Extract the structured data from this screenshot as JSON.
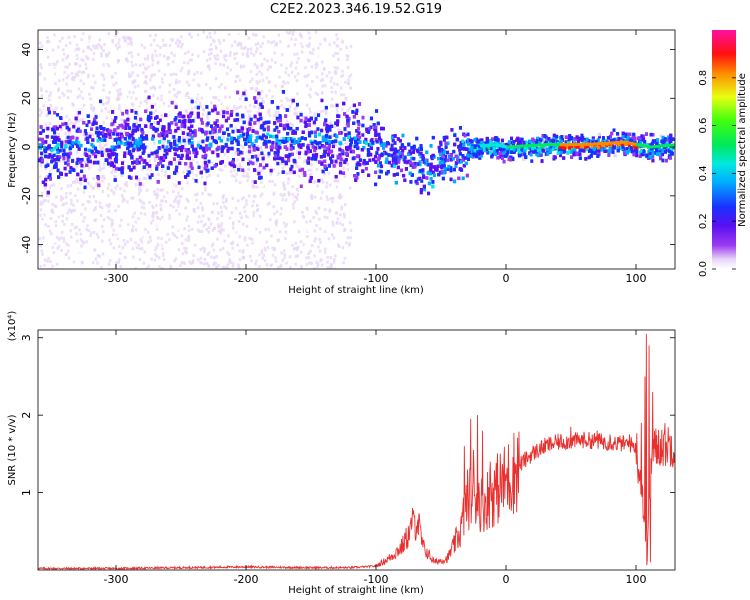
{
  "title": "C2E2.2023.346.19.52.G19",
  "chart_data": [
    {
      "type": "heatmap",
      "xlabel": "Height of straight line (km)",
      "ylabel": "Frequency (Hz)",
      "xlim": [
        -360,
        130
      ],
      "ylim": [
        -50,
        48
      ],
      "x_ticks": [
        -300,
        -200,
        -100,
        0,
        100
      ],
      "x_tick_labels": [
        "-300",
        "-200",
        "-100",
        "0",
        "100"
      ],
      "y_ticks": [
        -40,
        -20,
        0,
        20,
        40
      ],
      "y_tick_labels": [
        "-40",
        "-20",
        "0",
        "20",
        "40"
      ],
      "colorbar": {
        "label": "Normalized spectral amplitude",
        "range": [
          0,
          1
        ],
        "ticks": [
          0.0,
          0.2,
          0.4,
          0.6,
          0.8
        ],
        "tick_labels": [
          "0.0",
          "0.2",
          "0.4",
          "0.6",
          "0.8"
        ],
        "colormap": "rainbow (white-violet-blue-cyan-green-yellow-red-magenta)"
      },
      "center_frequency": [
        [
          -360,
          0
        ],
        [
          -300,
          2
        ],
        [
          -250,
          3
        ],
        [
          -200,
          4
        ],
        [
          -150,
          4
        ],
        [
          -120,
          3
        ],
        [
          -100,
          0
        ],
        [
          -80,
          -4
        ],
        [
          -60,
          -8
        ],
        [
          -50,
          -4
        ],
        [
          -40,
          -2
        ],
        [
          -30,
          0
        ],
        [
          -10,
          1
        ],
        [
          0,
          0
        ],
        [
          30,
          1
        ],
        [
          60,
          1
        ],
        [
          90,
          2
        ],
        [
          110,
          0
        ],
        [
          130,
          1
        ]
      ],
      "grid": false
    },
    {
      "type": "line",
      "xlabel": "Height of straight line (km)",
      "ylabel": "SNR (10 * v/v)",
      "y_multiplier_label": "(x10⁴)",
      "xlim": [
        -360,
        130
      ],
      "ylim": [
        0,
        3.1
      ],
      "x_ticks": [
        -300,
        -200,
        -100,
        0,
        100
      ],
      "x_tick_labels": [
        "-300",
        "-200",
        "-100",
        "0",
        "100"
      ],
      "y_ticks": [
        1,
        2,
        3
      ],
      "y_tick_labels": [
        "1",
        "2",
        "3"
      ],
      "series_color": "#e8302f",
      "envelope": [
        [
          -360,
          0.02
        ],
        [
          -300,
          0.02
        ],
        [
          -250,
          0.03
        ],
        [
          -200,
          0.04
        ],
        [
          -150,
          0.03
        ],
        [
          -120,
          0.03
        ],
        [
          -100,
          0.05
        ],
        [
          -90,
          0.15
        ],
        [
          -80,
          0.3
        ],
        [
          -72,
          0.55
        ],
        [
          -68,
          0.65
        ],
        [
          -64,
          0.3
        ],
        [
          -55,
          0.1
        ],
        [
          -45,
          0.15
        ],
        [
          -35,
          0.5
        ],
        [
          -30,
          0.9
        ],
        [
          -25,
          1.0
        ],
        [
          -18,
          0.85
        ],
        [
          -10,
          1.0
        ],
        [
          0,
          1.15
        ],
        [
          10,
          1.35
        ],
        [
          20,
          1.5
        ],
        [
          30,
          1.6
        ],
        [
          40,
          1.65
        ],
        [
          60,
          1.68
        ],
        [
          80,
          1.65
        ],
        [
          95,
          1.62
        ],
        [
          100,
          1.6
        ],
        [
          105,
          1.0
        ],
        [
          108,
          0.2
        ],
        [
          112,
          1.5
        ],
        [
          118,
          1.62
        ],
        [
          130,
          1.62
        ]
      ],
      "spikes": [
        [
          -72,
          0.8
        ],
        [
          -32,
          1.6
        ],
        [
          -27,
          1.95
        ],
        [
          -25,
          1.55
        ],
        [
          -22,
          2.0
        ],
        [
          -18,
          1.8
        ],
        [
          -12,
          1.4
        ],
        [
          50,
          1.85
        ],
        [
          70,
          1.8
        ],
        [
          80,
          1.75
        ],
        [
          95,
          1.75
        ],
        [
          104,
          1.9
        ],
        [
          107,
          2.5
        ],
        [
          108,
          3.05
        ],
        [
          110,
          2.9
        ],
        [
          111,
          0.1
        ],
        [
          113,
          2.3
        ]
      ],
      "grid": false
    }
  ]
}
